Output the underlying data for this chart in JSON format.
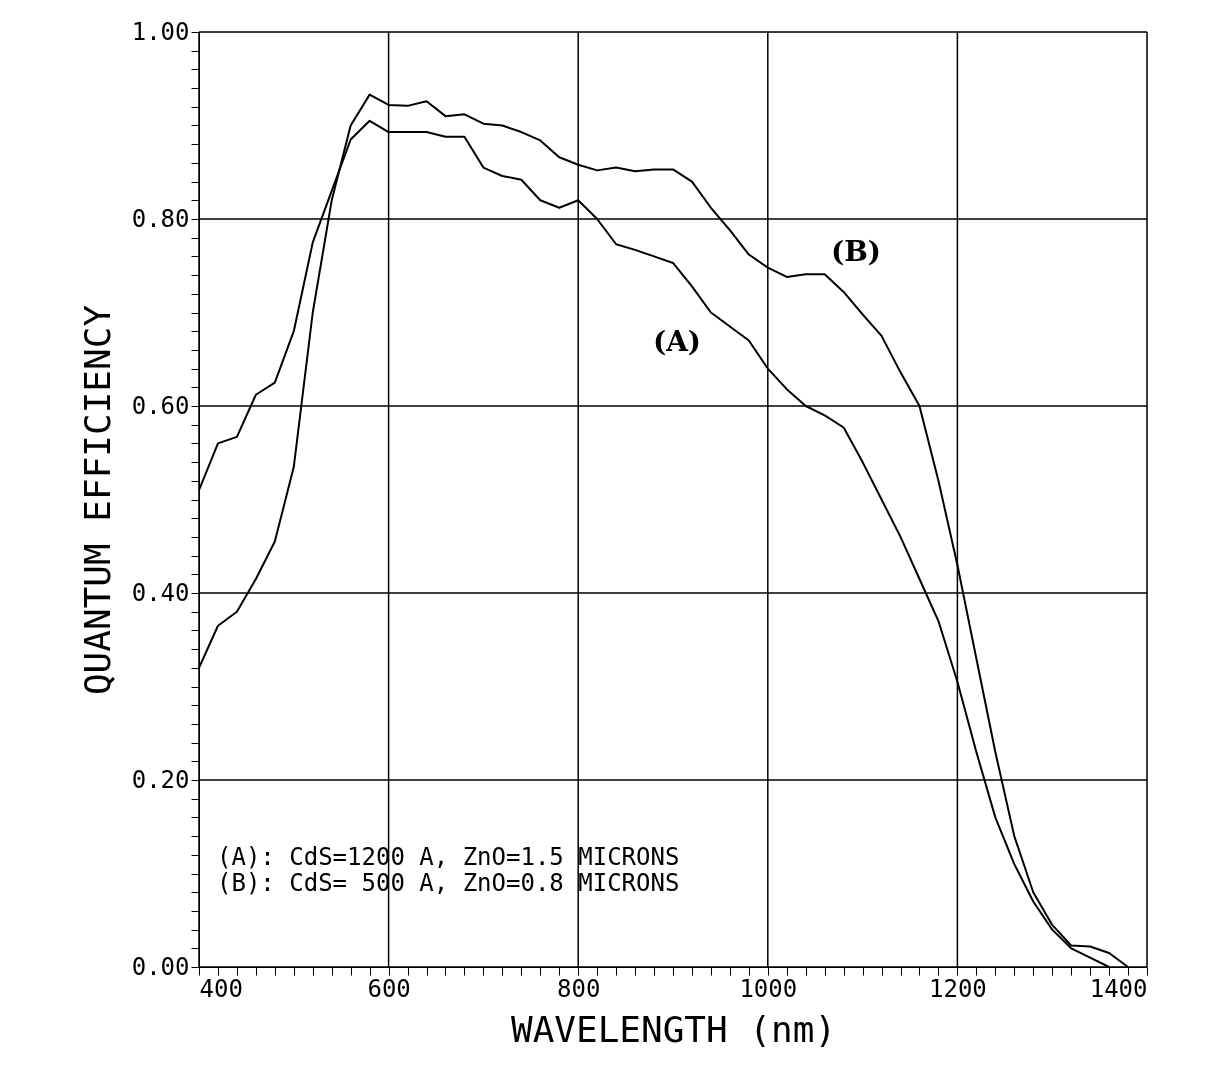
{
  "chart_data": {
    "type": "line",
    "xlabel": "WAVELENGTH (nm)",
    "ylabel": "QUANTUM EFFICIENCY",
    "xlim": [
      400,
      1400
    ],
    "ylim": [
      0,
      1
    ],
    "xticks": [
      400,
      {
        "value": 420,
        "label": null
      },
      {
        "value": 440,
        "label": null
      },
      {
        "value": 460,
        "label": null
      },
      {
        "value": 480,
        "label": null
      },
      {
        "value": 500,
        "label": null
      },
      {
        "value": 520,
        "label": null
      },
      {
        "value": 540,
        "label": null
      },
      {
        "value": 560,
        "label": null
      },
      {
        "value": 580,
        "label": null
      },
      600,
      {
        "value": 620,
        "label": null
      },
      {
        "value": 640,
        "label": null
      },
      {
        "value": 660,
        "label": null
      },
      {
        "value": 680,
        "label": null
      },
      {
        "value": 700,
        "label": null
      },
      {
        "value": 720,
        "label": null
      },
      {
        "value": 740,
        "label": null
      },
      {
        "value": 760,
        "label": null
      },
      {
        "value": 780,
        "label": null
      },
      800,
      {
        "value": 820,
        "label": null
      },
      {
        "value": 840,
        "label": null
      },
      {
        "value": 860,
        "label": null
      },
      {
        "value": 880,
        "label": null
      },
      {
        "value": 900,
        "label": null
      },
      {
        "value": 920,
        "label": null
      },
      {
        "value": 940,
        "label": null
      },
      {
        "value": 960,
        "label": null
      },
      {
        "value": 980,
        "label": null
      },
      1000,
      {
        "value": 1020,
        "label": null
      },
      {
        "value": 1040,
        "label": null
      },
      {
        "value": 1060,
        "label": null
      },
      {
        "value": 1080,
        "label": null
      },
      {
        "value": 1100,
        "label": null
      },
      {
        "value": 1120,
        "label": null
      },
      {
        "value": 1140,
        "label": null
      },
      {
        "value": 1160,
        "label": null
      },
      {
        "value": 1180,
        "label": null
      },
      1200,
      {
        "value": 1220,
        "label": null
      },
      {
        "value": 1240,
        "label": null
      },
      {
        "value": 1260,
        "label": null
      },
      {
        "value": 1280,
        "label": null
      },
      {
        "value": 1300,
        "label": null
      },
      {
        "value": 1320,
        "label": null
      },
      {
        "value": 1340,
        "label": null
      },
      {
        "value": 1360,
        "label": null
      },
      {
        "value": 1380,
        "label": null
      },
      1400
    ],
    "yticks": [
      {
        "value": 0,
        "label": "0.00"
      },
      {
        "value": 0.02,
        "label": null
      },
      {
        "value": 0.04,
        "label": null
      },
      {
        "value": 0.06,
        "label": null
      },
      {
        "value": 0.08,
        "label": null
      },
      {
        "value": 0.1,
        "label": null
      },
      {
        "value": 0.12,
        "label": null
      },
      {
        "value": 0.14,
        "label": null
      },
      {
        "value": 0.16,
        "label": null
      },
      {
        "value": 0.18,
        "label": null
      },
      {
        "value": 0.2,
        "label": "0.20"
      },
      {
        "value": 0.22,
        "label": null
      },
      {
        "value": 0.24,
        "label": null
      },
      {
        "value": 0.26,
        "label": null
      },
      {
        "value": 0.28,
        "label": null
      },
      {
        "value": 0.3,
        "label": null
      },
      {
        "value": 0.32,
        "label": null
      },
      {
        "value": 0.34,
        "label": null
      },
      {
        "value": 0.36,
        "label": null
      },
      {
        "value": 0.38,
        "label": null
      },
      {
        "value": 0.4,
        "label": "0.40"
      },
      {
        "value": 0.42,
        "label": null
      },
      {
        "value": 0.44,
        "label": null
      },
      {
        "value": 0.46,
        "label": null
      },
      {
        "value": 0.48,
        "label": null
      },
      {
        "value": 0.5,
        "label": null
      },
      {
        "value": 0.52,
        "label": null
      },
      {
        "value": 0.54,
        "label": null
      },
      {
        "value": 0.56,
        "label": null
      },
      {
        "value": 0.58,
        "label": null
      },
      {
        "value": 0.6,
        "label": "0.60"
      },
      {
        "value": 0.62,
        "label": null
      },
      {
        "value": 0.64,
        "label": null
      },
      {
        "value": 0.66,
        "label": null
      },
      {
        "value": 0.68,
        "label": null
      },
      {
        "value": 0.7,
        "label": null
      },
      {
        "value": 0.72,
        "label": null
      },
      {
        "value": 0.74,
        "label": null
      },
      {
        "value": 0.76,
        "label": null
      },
      {
        "value": 0.78,
        "label": null
      },
      {
        "value": 0.8,
        "label": "0.80"
      },
      {
        "value": 0.82,
        "label": null
      },
      {
        "value": 0.84,
        "label": null
      },
      {
        "value": 0.86,
        "label": null
      },
      {
        "value": 0.88,
        "label": null
      },
      {
        "value": 0.9,
        "label": null
      },
      {
        "value": 0.92,
        "label": null
      },
      {
        "value": 0.94,
        "label": null
      },
      {
        "value": 0.96,
        "label": null
      },
      {
        "value": 0.98,
        "label": null
      },
      {
        "value": 1,
        "label": "1.00"
      }
    ],
    "grid": true,
    "marker": "none",
    "line_style": "solid",
    "series": [
      {
        "color": "#000000",
        "x": [
          400,
          420,
          440,
          460,
          480,
          500,
          520,
          540,
          560,
          580,
          600,
          640,
          660,
          680,
          700,
          720,
          740,
          760,
          780,
          800,
          820,
          840,
          860,
          880,
          900,
          920,
          940,
          960,
          980,
          1000,
          1020,
          1040,
          1060,
          1080,
          1100,
          1120,
          1140,
          1160,
          1180,
          1200,
          1220,
          1240,
          1260,
          1280,
          1300,
          1320,
          1340,
          1360
        ],
        "values": [
          0.51,
          0.56,
          0.567,
          0.612,
          0.625,
          0.68,
          0.775,
          0.83,
          0.885,
          0.905,
          0.893,
          0.893,
          0.888,
          0.888,
          0.855,
          0.846,
          0.842,
          0.82,
          0.812,
          0.82,
          0.8,
          0.773,
          0.767,
          0.76,
          0.753,
          0.728,
          0.7,
          0.685,
          0.67,
          0.64,
          0.618,
          0.6,
          0.59,
          0.577,
          0.54,
          0.5,
          0.46,
          0.415,
          0.37,
          0.305,
          0.23,
          0.16,
          0.11,
          0.07,
          0.04,
          0.02,
          0.01,
          0.0
        ]
      },
      {
        "color": "#000000",
        "x": [
          400,
          420,
          440,
          460,
          480,
          500,
          520,
          540,
          560,
          580,
          600,
          620,
          640,
          660,
          680,
          700,
          720,
          740,
          760,
          780,
          800,
          820,
          840,
          860,
          880,
          900,
          920,
          940,
          960,
          980,
          1000,
          1020,
          1040,
          1060,
          1080,
          1100,
          1120,
          1140,
          1160,
          1180,
          1200,
          1220,
          1240,
          1260,
          1280,
          1300,
          1320,
          1340,
          1360,
          1380
        ],
        "values": [
          0.32,
          0.365,
          0.38,
          0.415,
          0.455,
          0.535,
          0.7,
          0.82,
          0.9,
          0.933,
          0.922,
          0.921,
          0.926,
          0.91,
          0.912,
          0.902,
          0.9,
          0.893,
          0.884,
          0.866,
          0.858,
          0.852,
          0.855,
          0.851,
          0.853,
          0.853,
          0.84,
          0.812,
          0.788,
          0.762,
          0.748,
          0.738,
          0.741,
          0.741,
          0.722,
          0.698,
          0.675,
          0.636,
          0.6,
          0.52,
          0.43,
          0.33,
          0.23,
          0.14,
          0.08,
          0.045,
          0.023,
          0.022,
          0.015,
          0.0
        ]
      }
    ],
    "annotations": [
      "(A)",
      "(B)",
      "(A): CdS=1200 A, ZnO=1.5 MICRONS",
      "(B): CdS= 500 A, ZnO=0.8 MICRONS"
    ]
  }
}
